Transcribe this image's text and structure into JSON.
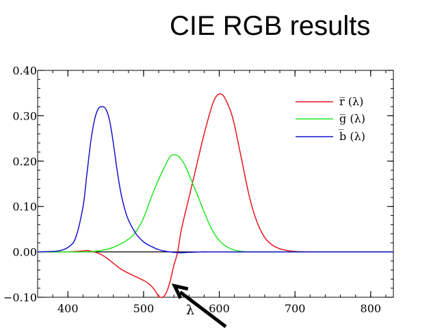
{
  "slide": {
    "title": "CIE RGB results"
  },
  "colors": {
    "r": "#e8141e",
    "g": "#1ee81e",
    "b": "#1414cc",
    "axis": "#000000",
    "arrow": "#000000"
  },
  "chart_data": {
    "type": "line",
    "xlim": [
      360,
      830
    ],
    "ylim": [
      -0.1,
      0.4
    ],
    "xticks": [
      400,
      500,
      600,
      700,
      800
    ],
    "yticks": [
      -0.1,
      0.0,
      0.1,
      0.2,
      0.3,
      0.4
    ],
    "xtick_labels": [
      "400",
      "500",
      "600",
      "700",
      "800"
    ],
    "ytick_labels": [
      "−0.10",
      "0.00",
      "0.10",
      "0.20",
      "0.30",
      "0.40"
    ],
    "grid": false,
    "legend_position": "top-right",
    "annotation": {
      "label": "λ",
      "arrow_points_to": [
        541,
        -0.075
      ]
    },
    "series": [
      {
        "name": "r̅ (λ)",
        "color": "#e8141e",
        "x": [
          360,
          400,
          410,
          420,
          425,
          430,
          440,
          450,
          460,
          470,
          480,
          490,
          500,
          505,
          510,
          515,
          520,
          525,
          530,
          535,
          540,
          545,
          550,
          560,
          570,
          580,
          590,
          595,
          600,
          605,
          610,
          615,
          620,
          630,
          640,
          650,
          660,
          670,
          680,
          690,
          700,
          720,
          740,
          780,
          830
        ],
        "y": [
          0.0,
          0.0,
          0.001,
          0.002,
          0.003,
          0.002,
          -0.003,
          -0.012,
          -0.025,
          -0.038,
          -0.047,
          -0.055,
          -0.063,
          -0.068,
          -0.075,
          -0.085,
          -0.098,
          -0.1,
          -0.09,
          -0.065,
          -0.03,
          0.0,
          0.05,
          0.12,
          0.19,
          0.26,
          0.32,
          0.34,
          0.348,
          0.345,
          0.33,
          0.31,
          0.28,
          0.2,
          0.12,
          0.065,
          0.032,
          0.015,
          0.007,
          0.003,
          0.001,
          0.0,
          0.0,
          0.0,
          0.0
        ]
      },
      {
        "name": "g̅ (λ)",
        "color": "#1ee81e",
        "x": [
          360,
          400,
          420,
          440,
          460,
          480,
          490,
          500,
          510,
          520,
          530,
          535,
          540,
          545,
          550,
          555,
          560,
          570,
          580,
          590,
          600,
          610,
          620,
          630,
          640,
          660,
          700,
          830
        ],
        "y": [
          0.0,
          0.0,
          0.0,
          0.002,
          0.01,
          0.028,
          0.045,
          0.075,
          0.12,
          0.16,
          0.195,
          0.21,
          0.214,
          0.212,
          0.203,
          0.19,
          0.17,
          0.13,
          0.088,
          0.05,
          0.025,
          0.011,
          0.004,
          0.001,
          0.0,
          0.0,
          0.0,
          0.0
        ]
      },
      {
        "name": "b̅ (λ)",
        "color": "#1414cc",
        "x": [
          360,
          380,
          390,
          400,
          410,
          420,
          425,
          430,
          435,
          440,
          445,
          450,
          455,
          460,
          465,
          470,
          475,
          480,
          490,
          500,
          510,
          520,
          530,
          540,
          550,
          560,
          580,
          600,
          830
        ],
        "y": [
          0.0,
          0.001,
          0.003,
          0.01,
          0.03,
          0.1,
          0.17,
          0.24,
          0.29,
          0.315,
          0.32,
          0.315,
          0.29,
          0.24,
          0.18,
          0.13,
          0.095,
          0.07,
          0.04,
          0.022,
          0.012,
          0.005,
          0.001,
          -0.001,
          -0.002,
          -0.001,
          0.0,
          0.0,
          0.0
        ]
      }
    ]
  }
}
